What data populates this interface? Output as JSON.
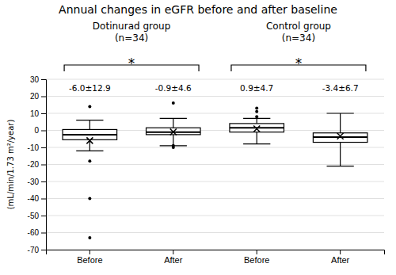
{
  "chart_data": {
    "type": "box",
    "title": "Annual changes in eGFR before and after baseline",
    "ylabel": "(mL/min/1.73 m²/year)",
    "group_labels": [
      "Dotinurad group\n(n=34)",
      "Control group\n(n=34)"
    ],
    "annotations": [
      "*",
      "*"
    ],
    "categories": [
      "Before",
      "After",
      "Before",
      "After"
    ],
    "stats_labels": [
      "-6.0±12.9",
      "-0.9±4.6",
      "0.9±4.7",
      "-3.4±6.7"
    ],
    "boxes": [
      {
        "q1": -5.5,
        "median": -2.5,
        "q3": 0.5,
        "whislo": -12,
        "whishi": 6,
        "mean": -6.0,
        "fliers": [
          14,
          -18,
          -40,
          -63
        ]
      },
      {
        "q1": -2.5,
        "median": -1.0,
        "q3": 1.5,
        "whislo": -9,
        "whishi": 7,
        "mean": -0.9,
        "fliers": [
          16,
          -9,
          -10
        ]
      },
      {
        "q1": -1.0,
        "median": 1.5,
        "q3": 4.0,
        "whislo": -8,
        "whishi": 7,
        "mean": 0.9,
        "fliers": [
          11,
          13,
          8
        ]
      },
      {
        "q1": -7.0,
        "median": -4.0,
        "q3": -1.5,
        "whislo": -21,
        "whishi": 10,
        "mean": -3.4,
        "fliers": []
      }
    ],
    "ylim": [
      -70,
      30
    ],
    "yticks": [
      30,
      20,
      10,
      0,
      -10,
      -20,
      -30,
      -40,
      -50,
      -60,
      -70
    ],
    "grid": true,
    "marker": "x"
  }
}
